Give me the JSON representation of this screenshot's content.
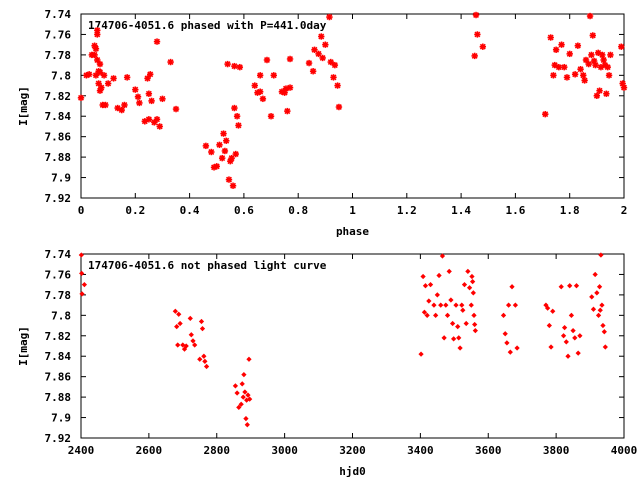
{
  "chart_data": [
    {
      "type": "scatter",
      "title": "174706-4051.6 phased with P=441.0day",
      "xlabel": "phase",
      "ylabel": "I[mag]",
      "xlim": [
        0,
        2
      ],
      "ylim": [
        7.74,
        7.92
      ],
      "y_inverted": true,
      "xticks": [
        "0",
        "0.2",
        "0.4",
        "0.6",
        "0.8",
        "1",
        "1.2",
        "1.4",
        "1.6",
        "1.8",
        "2"
      ],
      "yticks": [
        "7.74",
        "7.76",
        "7.78",
        "7.8",
        "7.82",
        "7.84",
        "7.86",
        "7.88",
        "7.9",
        "7.92"
      ],
      "marker": "asterisk",
      "color": "#ff0000",
      "grid": false,
      "legend": "none",
      "points": [
        [
          0.0,
          7.822
        ],
        [
          0.02,
          7.8
        ],
        [
          0.03,
          7.799
        ],
        [
          0.04,
          7.78
        ],
        [
          0.05,
          7.78
        ],
        [
          0.05,
          7.771
        ],
        [
          0.055,
          7.774
        ],
        [
          0.055,
          7.8
        ],
        [
          0.06,
          7.756
        ],
        [
          0.06,
          7.76
        ],
        [
          0.06,
          7.785
        ],
        [
          0.065,
          7.796
        ],
        [
          0.065,
          7.808
        ],
        [
          0.07,
          7.789
        ],
        [
          0.07,
          7.797
        ],
        [
          0.07,
          7.815
        ],
        [
          0.075,
          7.812
        ],
        [
          0.08,
          7.829
        ],
        [
          0.085,
          7.8
        ],
        [
          0.09,
          7.829
        ],
        [
          0.1,
          7.808
        ],
        [
          0.12,
          7.803
        ],
        [
          0.135,
          7.832
        ],
        [
          0.15,
          7.834
        ],
        [
          0.16,
          7.829
        ],
        [
          0.17,
          7.802
        ],
        [
          0.2,
          7.814
        ],
        [
          0.21,
          7.821
        ],
        [
          0.215,
          7.827
        ],
        [
          0.235,
          7.845
        ],
        [
          0.245,
          7.803
        ],
        [
          0.25,
          7.843
        ],
        [
          0.25,
          7.818
        ],
        [
          0.255,
          7.799
        ],
        [
          0.26,
          7.825
        ],
        [
          0.27,
          7.846
        ],
        [
          0.28,
          7.767
        ],
        [
          0.28,
          7.843
        ],
        [
          0.29,
          7.85
        ],
        [
          0.3,
          7.823
        ],
        [
          0.33,
          7.787
        ],
        [
          0.35,
          7.833
        ],
        [
          0.46,
          7.869
        ],
        [
          0.48,
          7.875
        ],
        [
          0.49,
          7.89
        ],
        [
          0.5,
          7.889
        ],
        [
          0.51,
          7.868
        ],
        [
          0.52,
          7.881
        ],
        [
          0.525,
          7.857
        ],
        [
          0.53,
          7.874
        ],
        [
          0.535,
          7.864
        ],
        [
          0.54,
          7.789
        ],
        [
          0.545,
          7.902
        ],
        [
          0.55,
          7.884
        ],
        [
          0.555,
          7.881
        ],
        [
          0.56,
          7.908
        ],
        [
          0.565,
          7.832
        ],
        [
          0.565,
          7.791
        ],
        [
          0.57,
          7.877
        ],
        [
          0.575,
          7.84
        ],
        [
          0.58,
          7.849
        ],
        [
          0.585,
          7.792
        ],
        [
          0.64,
          7.81
        ],
        [
          0.65,
          7.817
        ],
        [
          0.66,
          7.816
        ],
        [
          0.66,
          7.8
        ],
        [
          0.67,
          7.823
        ],
        [
          0.685,
          7.785
        ],
        [
          0.7,
          7.84
        ],
        [
          0.71,
          7.8
        ],
        [
          0.74,
          7.816
        ],
        [
          0.75,
          7.817
        ],
        [
          0.755,
          7.813
        ],
        [
          0.76,
          7.835
        ],
        [
          0.77,
          7.812
        ],
        [
          0.77,
          7.784
        ],
        [
          0.84,
          7.788
        ],
        [
          0.855,
          7.796
        ],
        [
          0.86,
          7.775
        ],
        [
          0.875,
          7.779
        ],
        [
          0.885,
          7.762
        ],
        [
          0.89,
          7.783
        ],
        [
          0.9,
          7.77
        ],
        [
          0.915,
          7.743
        ],
        [
          0.92,
          7.787
        ],
        [
          0.93,
          7.802
        ],
        [
          0.935,
          7.79
        ],
        [
          0.945,
          7.81
        ],
        [
          0.95,
          7.831
        ],
        [
          1.45,
          7.781
        ],
        [
          1.455,
          7.741
        ],
        [
          1.46,
          7.76
        ],
        [
          1.48,
          7.772
        ],
        [
          1.71,
          7.838
        ],
        [
          1.73,
          7.763
        ],
        [
          1.74,
          7.8
        ],
        [
          1.745,
          7.79
        ],
        [
          1.75,
          7.775
        ],
        [
          1.76,
          7.792
        ],
        [
          1.77,
          7.77
        ],
        [
          1.78,
          7.792
        ],
        [
          1.79,
          7.802
        ],
        [
          1.8,
          7.779
        ],
        [
          1.82,
          7.799
        ],
        [
          1.83,
          7.771
        ],
        [
          1.84,
          7.794
        ],
        [
          1.85,
          7.8
        ],
        [
          1.855,
          7.805
        ],
        [
          1.86,
          7.785
        ],
        [
          1.87,
          7.789
        ],
        [
          1.875,
          7.742
        ],
        [
          1.88,
          7.78
        ],
        [
          1.885,
          7.761
        ],
        [
          1.89,
          7.786
        ],
        [
          1.895,
          7.79
        ],
        [
          1.9,
          7.82
        ],
        [
          1.905,
          7.778
        ],
        [
          1.91,
          7.815
        ],
        [
          1.915,
          7.792
        ],
        [
          1.92,
          7.78
        ],
        [
          1.925,
          7.785
        ],
        [
          1.93,
          7.79
        ],
        [
          1.935,
          7.818
        ],
        [
          1.94,
          7.792
        ],
        [
          1.945,
          7.8
        ],
        [
          1.95,
          7.78
        ],
        [
          1.99,
          7.772
        ],
        [
          1.995,
          7.808
        ],
        [
          2.0,
          7.812
        ]
      ]
    },
    {
      "type": "scatter",
      "title": "174706-4051.6 not phased light curve",
      "xlabel": "hjd0",
      "ylabel": "I[mag]",
      "xlim": [
        2400,
        4000
      ],
      "ylim": [
        7.74,
        7.92
      ],
      "y_inverted": true,
      "xticks": [
        "2400",
        "2600",
        "2800",
        "3000",
        "3200",
        "3400",
        "3600",
        "3800",
        "4000"
      ],
      "yticks": [
        "7.74",
        "7.76",
        "7.78",
        "7.8",
        "7.82",
        "7.84",
        "7.86",
        "7.88",
        "7.9",
        "7.92"
      ],
      "marker": "diamond",
      "color": "#ff0000",
      "grid": false,
      "legend": "none",
      "points": [
        [
          2401,
          7.741
        ],
        [
          2402,
          7.759
        ],
        [
          2403,
          7.779
        ],
        [
          2410,
          7.77
        ],
        [
          2678,
          7.796
        ],
        [
          2682,
          7.811
        ],
        [
          2685,
          7.829
        ],
        [
          2688,
          7.799
        ],
        [
          2692,
          7.808
        ],
        [
          2700,
          7.829
        ],
        [
          2705,
          7.833
        ],
        [
          2710,
          7.83
        ],
        [
          2722,
          7.803
        ],
        [
          2725,
          7.819
        ],
        [
          2730,
          7.825
        ],
        [
          2735,
          7.829
        ],
        [
          2750,
          7.843
        ],
        [
          2755,
          7.806
        ],
        [
          2758,
          7.813
        ],
        [
          2762,
          7.84
        ],
        [
          2765,
          7.845
        ],
        [
          2770,
          7.85
        ],
        [
          2855,
          7.869
        ],
        [
          2860,
          7.876
        ],
        [
          2865,
          7.89
        ],
        [
          2872,
          7.887
        ],
        [
          2875,
          7.867
        ],
        [
          2878,
          7.88
        ],
        [
          2880,
          7.858
        ],
        [
          2883,
          7.875
        ],
        [
          2886,
          7.901
        ],
        [
          2888,
          7.883
        ],
        [
          2890,
          7.907
        ],
        [
          2892,
          7.878
        ],
        [
          2895,
          7.843
        ],
        [
          2897,
          7.882
        ],
        [
          3402,
          7.838
        ],
        [
          3408,
          7.762
        ],
        [
          3412,
          7.797
        ],
        [
          3415,
          7.771
        ],
        [
          3420,
          7.8
        ],
        [
          3425,
          7.786
        ],
        [
          3430,
          7.77
        ],
        [
          3440,
          7.79
        ],
        [
          3445,
          7.8
        ],
        [
          3450,
          7.78
        ],
        [
          3455,
          7.761
        ],
        [
          3460,
          7.79
        ],
        [
          3465,
          7.742
        ],
        [
          3470,
          7.822
        ],
        [
          3475,
          7.79
        ],
        [
          3480,
          7.8
        ],
        [
          3485,
          7.757
        ],
        [
          3490,
          7.785
        ],
        [
          3495,
          7.808
        ],
        [
          3498,
          7.823
        ],
        [
          3505,
          7.79
        ],
        [
          3510,
          7.811
        ],
        [
          3513,
          7.822
        ],
        [
          3517,
          7.832
        ],
        [
          3522,
          7.79
        ],
        [
          3525,
          7.795
        ],
        [
          3530,
          7.77
        ],
        [
          3535,
          7.808
        ],
        [
          3540,
          7.757
        ],
        [
          3545,
          7.773
        ],
        [
          3550,
          7.79
        ],
        [
          3552,
          7.762
        ],
        [
          3554,
          7.767
        ],
        [
          3556,
          7.778
        ],
        [
          3558,
          7.8
        ],
        [
          3560,
          7.809
        ],
        [
          3562,
          7.815
        ],
        [
          3645,
          7.8
        ],
        [
          3650,
          7.818
        ],
        [
          3655,
          7.827
        ],
        [
          3660,
          7.79
        ],
        [
          3665,
          7.836
        ],
        [
          3670,
          7.772
        ],
        [
          3680,
          7.79
        ],
        [
          3685,
          7.832
        ],
        [
          3770,
          7.79
        ],
        [
          3775,
          7.793
        ],
        [
          3780,
          7.81
        ],
        [
          3785,
          7.831
        ],
        [
          3790,
          7.796
        ],
        [
          3815,
          7.772
        ],
        [
          3822,
          7.82
        ],
        [
          3825,
          7.812
        ],
        [
          3830,
          7.826
        ],
        [
          3835,
          7.84
        ],
        [
          3840,
          7.771
        ],
        [
          3845,
          7.8
        ],
        [
          3850,
          7.815
        ],
        [
          3855,
          7.822
        ],
        [
          3860,
          7.771
        ],
        [
          3865,
          7.837
        ],
        [
          3870,
          7.82
        ],
        [
          3905,
          7.782
        ],
        [
          3910,
          7.794
        ],
        [
          3915,
          7.76
        ],
        [
          3920,
          7.778
        ],
        [
          3925,
          7.8
        ],
        [
          3928,
          7.772
        ],
        [
          3930,
          7.795
        ],
        [
          3932,
          7.741
        ],
        [
          3935,
          7.79
        ],
        [
          3938,
          7.81
        ],
        [
          3942,
          7.816
        ],
        [
          3945,
          7.831
        ]
      ]
    }
  ]
}
